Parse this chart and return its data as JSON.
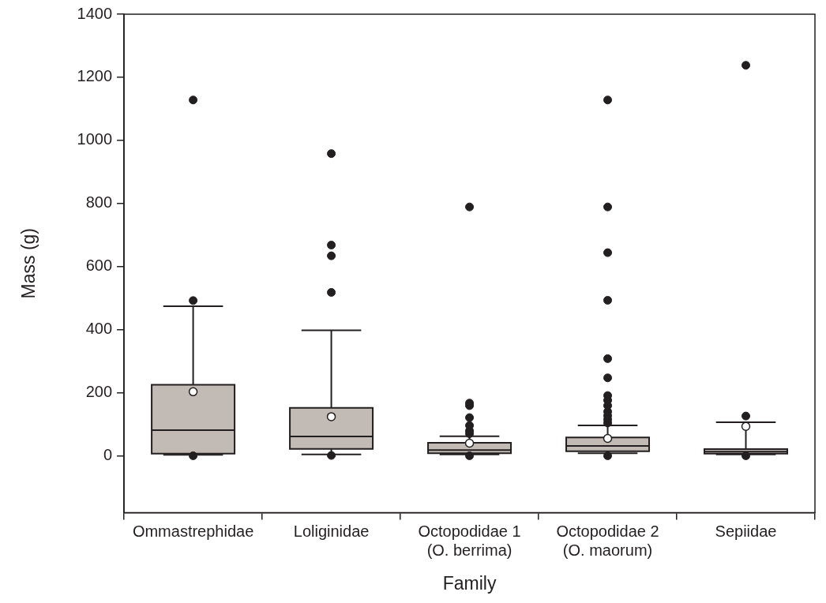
{
  "chart_data": {
    "type": "box",
    "xlabel": "Family",
    "ylabel": "Mass (g)",
    "categories": [
      "Ommastrephidae",
      "Loliginidae",
      "Octopodidae 1 (O. berrima)",
      "Octopodidae 2 (O. maorum)",
      "Sepiidae"
    ],
    "ylim": [
      -180,
      1400
    ],
    "yticks": [
      0,
      200,
      400,
      600,
      800,
      1000,
      1200,
      1400
    ],
    "grid": false,
    "legend": false,
    "series": [
      {
        "color": "#c2bab4",
        "boxes": [
          {
            "low": 3,
            "q1": 7,
            "median": 81,
            "q3": 225,
            "high": 474,
            "mean": 203,
            "outliers": [
              0,
              492,
              1128
            ]
          },
          {
            "low": 4,
            "q1": 22,
            "median": 61,
            "q3": 152,
            "high": 398,
            "mean": 124,
            "outliers": [
              1,
              518,
              634,
              668,
              958
            ]
          },
          {
            "low": 4,
            "q1": 8,
            "median": 18,
            "q3": 41,
            "high": 62,
            "mean": 40,
            "outliers": [
              0,
              70,
              79,
              96,
              121,
              159,
              167,
              789
            ]
          },
          {
            "low": 8,
            "q1": 14,
            "median": 31,
            "q3": 58,
            "high": 96,
            "mean": 55,
            "outliers": [
              0,
              104,
              115,
              127,
              140,
              159,
              176,
              191,
              247,
              308,
              493,
              644,
              789,
              1128
            ]
          },
          {
            "low": 4,
            "q1": 7,
            "median": 13,
            "q3": 21,
            "high": 106,
            "mean": 93,
            "outliers": [
              0,
              126,
              1238
            ]
          }
        ]
      }
    ]
  }
}
